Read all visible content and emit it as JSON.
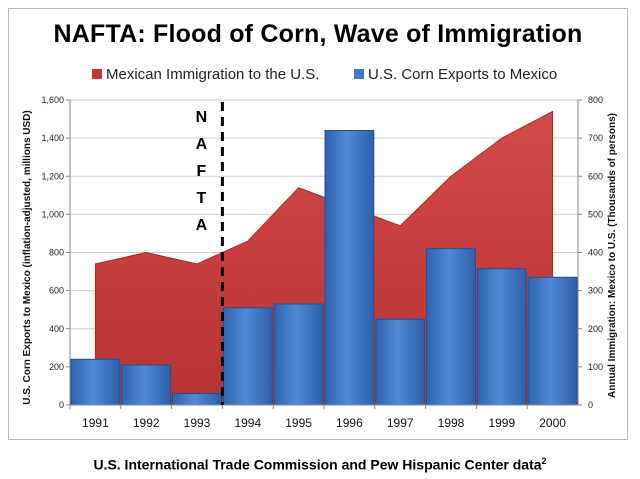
{
  "chart_data": {
    "type": "bar+area",
    "title": "NAFTA: Flood of Corn, Wave of Immigration",
    "categories": [
      "1991",
      "1992",
      "1993",
      "1994",
      "1995",
      "1996",
      "1997",
      "1998",
      "1999",
      "2000"
    ],
    "series": [
      {
        "name": "Mexican Immigration to the U.S.",
        "type": "area",
        "axis": "right",
        "color": "#c0383a",
        "values": [
          370,
          400,
          370,
          430,
          570,
          520,
          470,
          600,
          700,
          770
        ]
      },
      {
        "name": "U.S. Corn Exports to Mexico",
        "type": "bar",
        "axis": "left",
        "color": "#3f78c8",
        "values": [
          240,
          210,
          60,
          510,
          530,
          1440,
          450,
          820,
          715,
          670
        ]
      }
    ],
    "y_left": {
      "label": "U.S. Corn Exports to Mexico (inflation-adjusted, millions USD)",
      "min": 0,
      "max": 1600,
      "ticks": [
        "0",
        "200",
        "400",
        "600",
        "800",
        "1,000",
        "1,200",
        "1,400",
        "1,600"
      ]
    },
    "y_right": {
      "label": "Annual Immigration: Mexico to U.S. (Thousands of persons)",
      "min": 0,
      "max": 800,
      "ticks": [
        "0",
        "100",
        "200",
        "300",
        "400",
        "500",
        "600",
        "700",
        "800"
      ]
    },
    "annotation": {
      "text": "NAFTA",
      "position_between": [
        "1993",
        "1994"
      ]
    },
    "legend": "top",
    "grid": true
  },
  "caption": "U.S. International Trade Commission and Pew Hispanic Center data",
  "caption_sup": "2"
}
